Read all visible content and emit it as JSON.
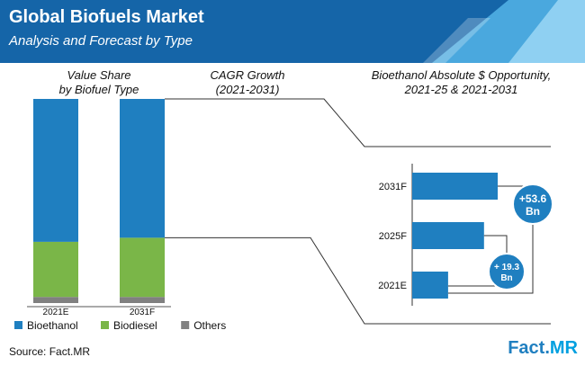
{
  "header": {
    "title": "Global Biofuels Market",
    "subtitle": "Analysis and Forecast by Type"
  },
  "section_titles": {
    "value_share": [
      "Value Share",
      "by Biofuel Type"
    ],
    "cagr": [
      "CAGR Growth",
      "(2021-2031)"
    ],
    "opportunity": [
      "Bioethanol Absolute $ Opportunity,",
      "2021-25 & 2021-2031"
    ]
  },
  "source": "Source: Fact.MR",
  "logo": {
    "part1": "Fact.",
    "part2": "MR"
  },
  "colors": {
    "bioethanol": "#1f7fc0",
    "biodiesel": "#7ab648",
    "others": "#808080",
    "banner_dark": "#1565a8",
    "bubble": "#1f7fc0"
  },
  "chart_data": [
    {
      "type": "bar",
      "stacked": true,
      "categories": [
        "2021E",
        "2031F"
      ],
      "series": [
        {
          "name": "Bioethanol",
          "values": [
            70,
            68
          ]
        },
        {
          "name": "Biodiesel",
          "values": [
            27,
            29
          ]
        },
        {
          "name": "Others",
          "values": [
            3,
            3
          ]
        }
      ],
      "ylim": [
        0,
        100
      ],
      "legend": "bottom",
      "grid": false
    },
    {
      "type": "bar",
      "orientation": "horizontal",
      "categories": [
        "2031F",
        "2025F",
        "2021E"
      ],
      "values": [
        100,
        84,
        42
      ],
      "annotations": [
        {
          "text": [
            "+53.6",
            "Bn"
          ],
          "between": [
            "2021E",
            "2031F"
          ]
        },
        {
          "text": [
            "+ 19.3",
            "Bn"
          ],
          "between": [
            "2021E",
            "2025F"
          ]
        }
      ],
      "grid": false
    }
  ]
}
